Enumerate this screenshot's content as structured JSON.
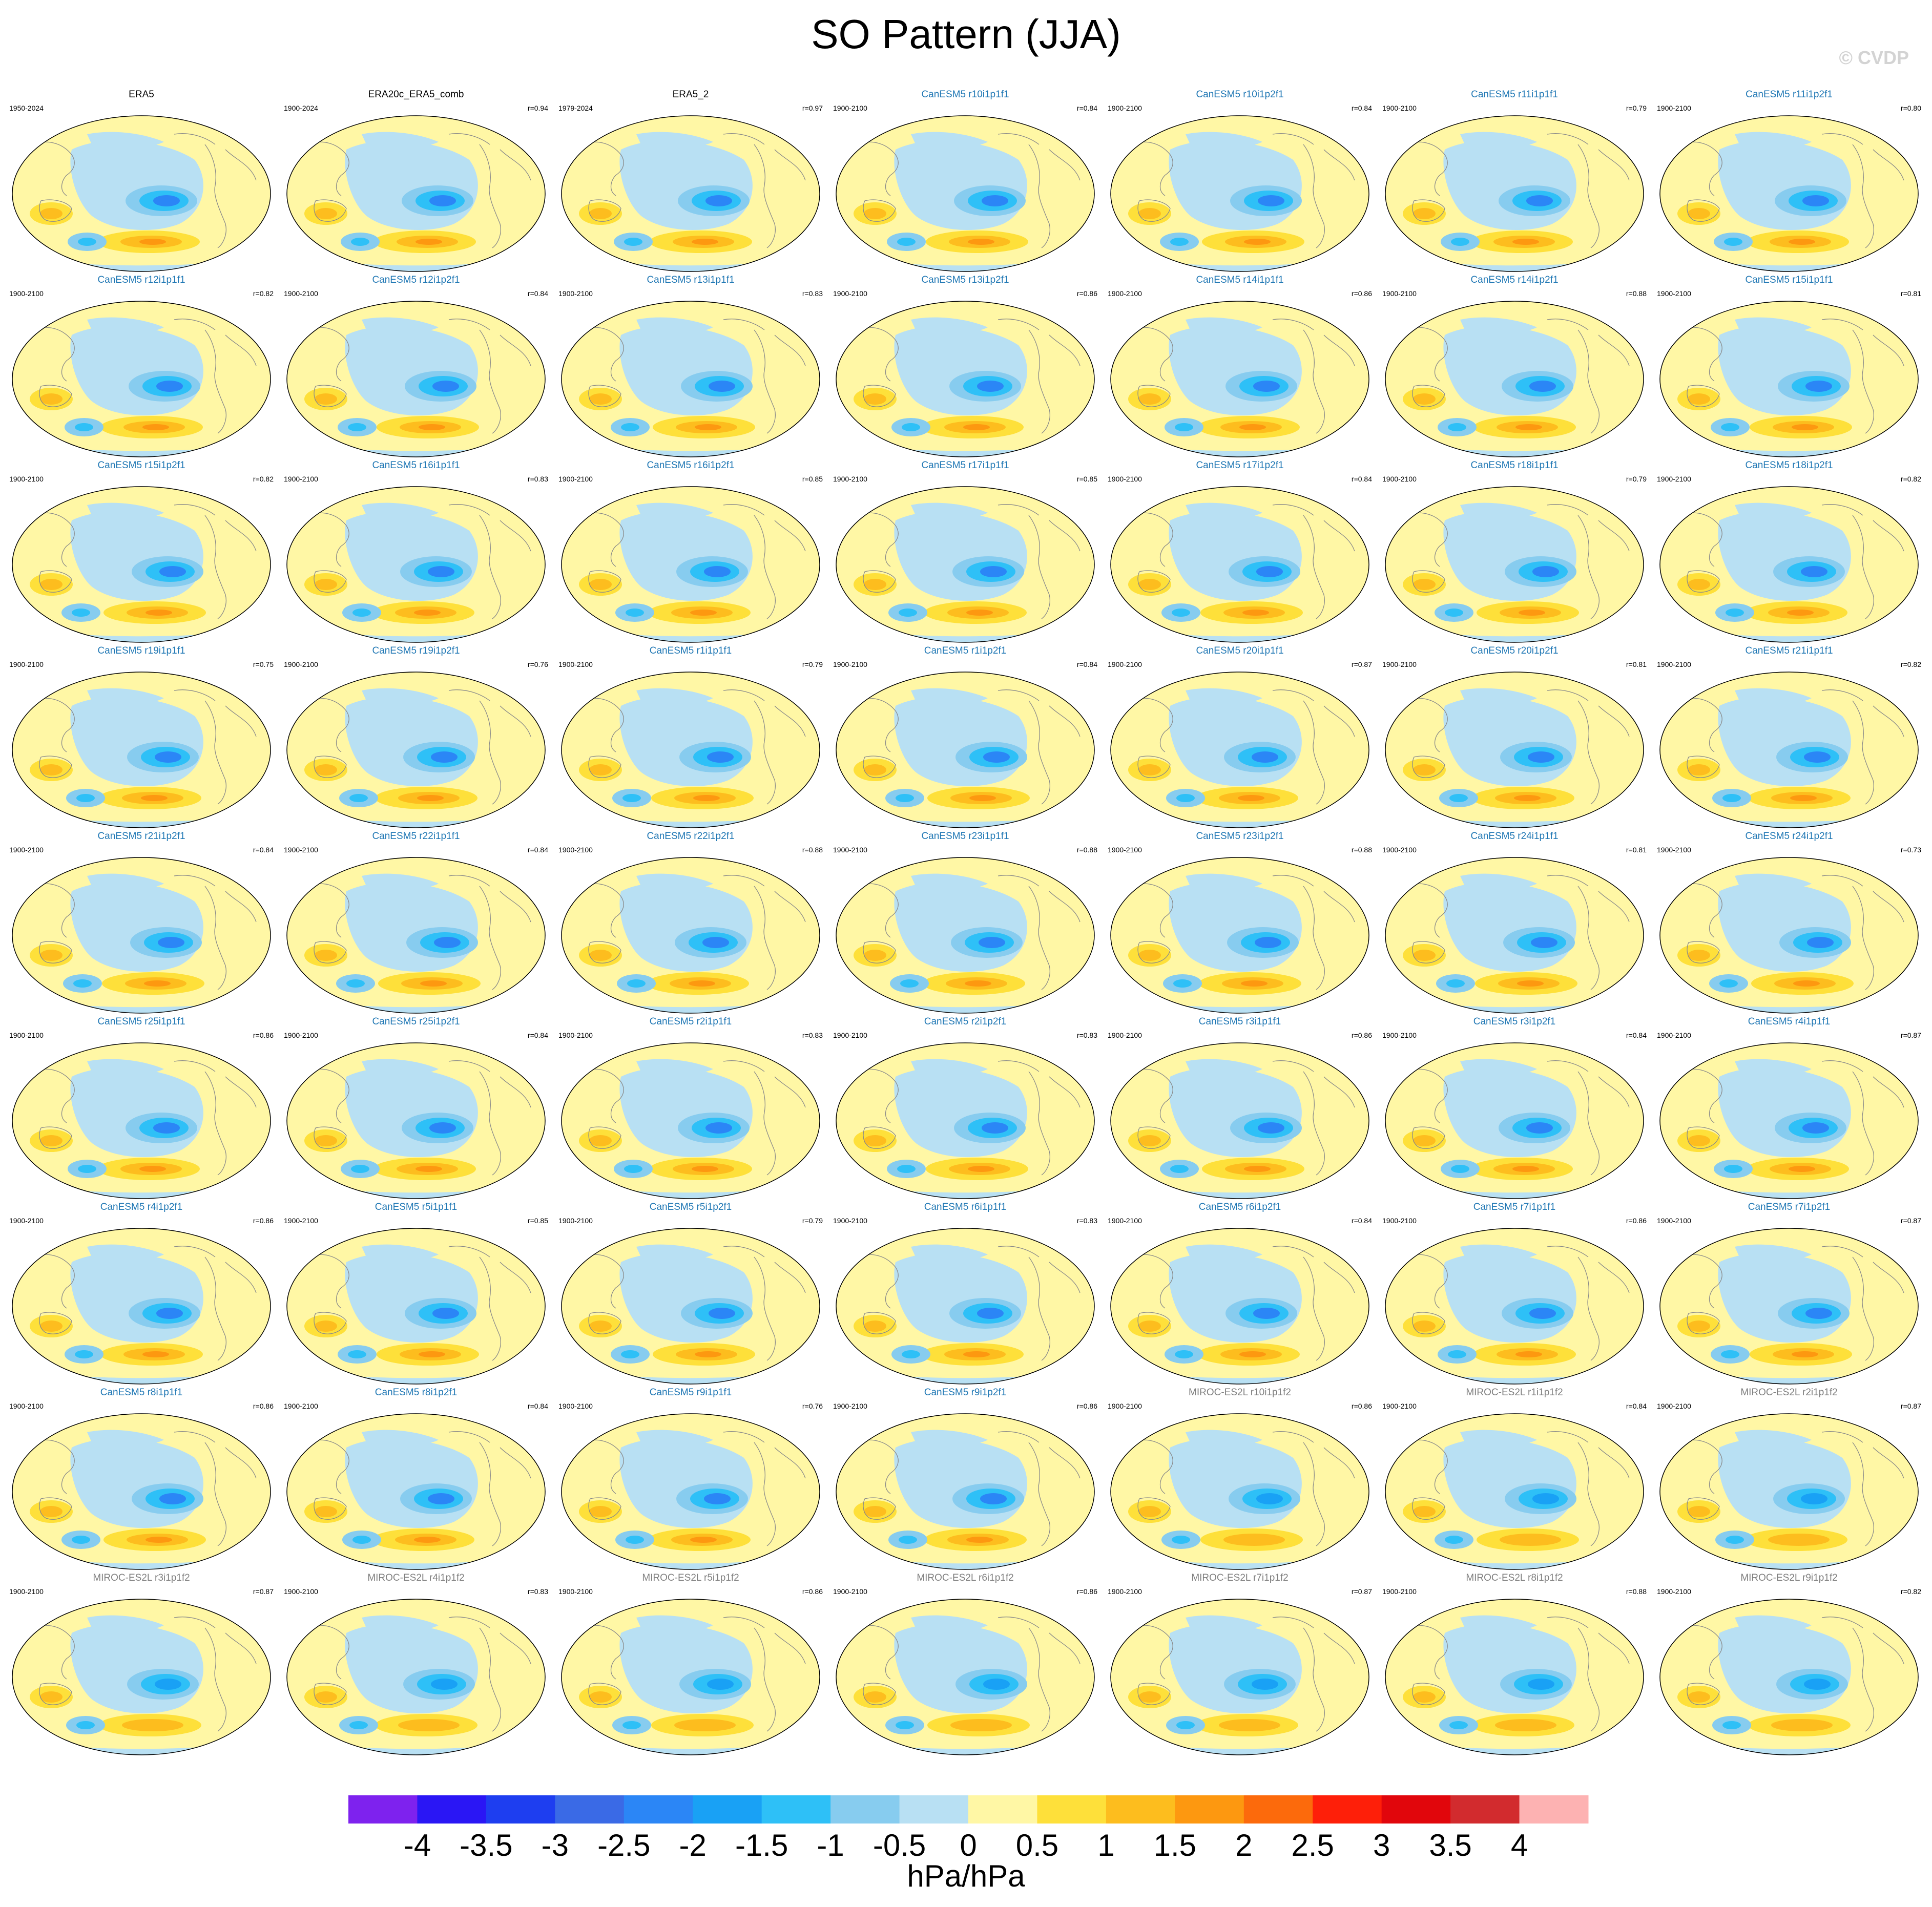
{
  "header": {
    "title": "SO Pattern (JJA)",
    "copyright": "© CVDP"
  },
  "colors": {
    "obs_name": "#000000",
    "canesm_name": "#1f77b4",
    "miroc_name": "#7f7f7f",
    "coast": "#8a8a8a"
  },
  "chart_data": {
    "type": "contour-map-grid",
    "title": "SO Pattern (JJA)",
    "projection": "Robinson (Pacific-centered)",
    "panels": [
      {
        "name": "ERA5",
        "period": "1950-2024",
        "r": "",
        "group": "obs"
      },
      {
        "name": "ERA20c_ERA5_comb",
        "period": "1900-2024",
        "r": "r=0.94",
        "group": "obs"
      },
      {
        "name": "ERA5_2",
        "period": "1979-2024",
        "r": "r=0.97",
        "group": "obs"
      },
      {
        "name": "CanESM5 r10i1p1f1",
        "period": "1900-2100",
        "r": "r=0.84",
        "group": "canesm"
      },
      {
        "name": "CanESM5 r10i1p2f1",
        "period": "1900-2100",
        "r": "r=0.84",
        "group": "canesm"
      },
      {
        "name": "CanESM5 r11i1p1f1",
        "period": "1900-2100",
        "r": "r=0.79",
        "group": "canesm"
      },
      {
        "name": "CanESM5 r11i1p2f1",
        "period": "1900-2100",
        "r": "r=0.80",
        "group": "canesm"
      },
      {
        "name": "CanESM5 r12i1p1f1",
        "period": "1900-2100",
        "r": "r=0.82",
        "group": "canesm"
      },
      {
        "name": "CanESM5 r12i1p2f1",
        "period": "1900-2100",
        "r": "r=0.84",
        "group": "canesm"
      },
      {
        "name": "CanESM5 r13i1p1f1",
        "period": "1900-2100",
        "r": "r=0.83",
        "group": "canesm"
      },
      {
        "name": "CanESM5 r13i1p2f1",
        "period": "1900-2100",
        "r": "r=0.86",
        "group": "canesm"
      },
      {
        "name": "CanESM5 r14i1p1f1",
        "period": "1900-2100",
        "r": "r=0.86",
        "group": "canesm"
      },
      {
        "name": "CanESM5 r14i1p2f1",
        "period": "1900-2100",
        "r": "r=0.88",
        "group": "canesm"
      },
      {
        "name": "CanESM5 r15i1p1f1",
        "period": "1900-2100",
        "r": "r=0.81",
        "group": "canesm"
      },
      {
        "name": "CanESM5 r15i1p2f1",
        "period": "1900-2100",
        "r": "r=0.82",
        "group": "canesm"
      },
      {
        "name": "CanESM5 r16i1p1f1",
        "period": "1900-2100",
        "r": "r=0.83",
        "group": "canesm"
      },
      {
        "name": "CanESM5 r16i1p2f1",
        "period": "1900-2100",
        "r": "r=0.85",
        "group": "canesm"
      },
      {
        "name": "CanESM5 r17i1p1f1",
        "period": "1900-2100",
        "r": "r=0.85",
        "group": "canesm"
      },
      {
        "name": "CanESM5 r17i1p2f1",
        "period": "1900-2100",
        "r": "r=0.84",
        "group": "canesm"
      },
      {
        "name": "CanESM5 r18i1p1f1",
        "period": "1900-2100",
        "r": "r=0.79",
        "group": "canesm"
      },
      {
        "name": "CanESM5 r18i1p2f1",
        "period": "1900-2100",
        "r": "r=0.82",
        "group": "canesm"
      },
      {
        "name": "CanESM5 r19i1p1f1",
        "period": "1900-2100",
        "r": "r=0.75",
        "group": "canesm"
      },
      {
        "name": "CanESM5 r19i1p2f1",
        "period": "1900-2100",
        "r": "r=0.76",
        "group": "canesm"
      },
      {
        "name": "CanESM5 r1i1p1f1",
        "period": "1900-2100",
        "r": "r=0.79",
        "group": "canesm"
      },
      {
        "name": "CanESM5 r1i1p2f1",
        "period": "1900-2100",
        "r": "r=0.84",
        "group": "canesm"
      },
      {
        "name": "CanESM5 r20i1p1f1",
        "period": "1900-2100",
        "r": "r=0.87",
        "group": "canesm"
      },
      {
        "name": "CanESM5 r20i1p2f1",
        "period": "1900-2100",
        "r": "r=0.81",
        "group": "canesm"
      },
      {
        "name": "CanESM5 r21i1p1f1",
        "period": "1900-2100",
        "r": "r=0.82",
        "group": "canesm"
      },
      {
        "name": "CanESM5 r21i1p2f1",
        "period": "1900-2100",
        "r": "r=0.84",
        "group": "canesm"
      },
      {
        "name": "CanESM5 r22i1p1f1",
        "period": "1900-2100",
        "r": "r=0.84",
        "group": "canesm"
      },
      {
        "name": "CanESM5 r22i1p2f1",
        "period": "1900-2100",
        "r": "r=0.88",
        "group": "canesm"
      },
      {
        "name": "CanESM5 r23i1p1f1",
        "period": "1900-2100",
        "r": "r=0.88",
        "group": "canesm"
      },
      {
        "name": "CanESM5 r23i1p2f1",
        "period": "1900-2100",
        "r": "r=0.88",
        "group": "canesm"
      },
      {
        "name": "CanESM5 r24i1p1f1",
        "period": "1900-2100",
        "r": "r=0.81",
        "group": "canesm"
      },
      {
        "name": "CanESM5 r24i1p2f1",
        "period": "1900-2100",
        "r": "r=0.73",
        "group": "canesm"
      },
      {
        "name": "CanESM5 r25i1p1f1",
        "period": "1900-2100",
        "r": "r=0.86",
        "group": "canesm"
      },
      {
        "name": "CanESM5 r25i1p2f1",
        "period": "1900-2100",
        "r": "r=0.84",
        "group": "canesm"
      },
      {
        "name": "CanESM5 r2i1p1f1",
        "period": "1900-2100",
        "r": "r=0.83",
        "group": "canesm"
      },
      {
        "name": "CanESM5 r2i1p2f1",
        "period": "1900-2100",
        "r": "r=0.83",
        "group": "canesm"
      },
      {
        "name": "CanESM5 r3i1p1f1",
        "period": "1900-2100",
        "r": "r=0.86",
        "group": "canesm"
      },
      {
        "name": "CanESM5 r3i1p2f1",
        "period": "1900-2100",
        "r": "r=0.84",
        "group": "canesm"
      },
      {
        "name": "CanESM5 r4i1p1f1",
        "period": "1900-2100",
        "r": "r=0.87",
        "group": "canesm"
      },
      {
        "name": "CanESM5 r4i1p2f1",
        "period": "1900-2100",
        "r": "r=0.86",
        "group": "canesm"
      },
      {
        "name": "CanESM5 r5i1p1f1",
        "period": "1900-2100",
        "r": "r=0.85",
        "group": "canesm"
      },
      {
        "name": "CanESM5 r5i1p2f1",
        "period": "1900-2100",
        "r": "r=0.79",
        "group": "canesm"
      },
      {
        "name": "CanESM5 r6i1p1f1",
        "period": "1900-2100",
        "r": "r=0.83",
        "group": "canesm"
      },
      {
        "name": "CanESM5 r6i1p2f1",
        "period": "1900-2100",
        "r": "r=0.84",
        "group": "canesm"
      },
      {
        "name": "CanESM5 r7i1p1f1",
        "period": "1900-2100",
        "r": "r=0.86",
        "group": "canesm"
      },
      {
        "name": "CanESM5 r7i1p2f1",
        "period": "1900-2100",
        "r": "r=0.87",
        "group": "canesm"
      },
      {
        "name": "CanESM5 r8i1p1f1",
        "period": "1900-2100",
        "r": "r=0.86",
        "group": "canesm"
      },
      {
        "name": "CanESM5 r8i1p2f1",
        "period": "1900-2100",
        "r": "r=0.84",
        "group": "canesm"
      },
      {
        "name": "CanESM5 r9i1p1f1",
        "period": "1900-2100",
        "r": "r=0.76",
        "group": "canesm"
      },
      {
        "name": "CanESM5 r9i1p2f1",
        "period": "1900-2100",
        "r": "r=0.86",
        "group": "canesm"
      },
      {
        "name": "MIROC-ES2L r10i1p1f2",
        "period": "1900-2100",
        "r": "r=0.86",
        "group": "miroc"
      },
      {
        "name": "MIROC-ES2L r1i1p1f2",
        "period": "1900-2100",
        "r": "r=0.84",
        "group": "miroc"
      },
      {
        "name": "MIROC-ES2L r2i1p1f2",
        "period": "1900-2100",
        "r": "r=0.87",
        "group": "miroc"
      },
      {
        "name": "MIROC-ES2L r3i1p1f2",
        "period": "1900-2100",
        "r": "r=0.87",
        "group": "miroc"
      },
      {
        "name": "MIROC-ES2L r4i1p1f2",
        "period": "1900-2100",
        "r": "r=0.83",
        "group": "miroc"
      },
      {
        "name": "MIROC-ES2L r5i1p1f2",
        "period": "1900-2100",
        "r": "r=0.86",
        "group": "miroc"
      },
      {
        "name": "MIROC-ES2L r6i1p1f2",
        "period": "1900-2100",
        "r": "r=0.86",
        "group": "miroc"
      },
      {
        "name": "MIROC-ES2L r7i1p1f2",
        "period": "1900-2100",
        "r": "r=0.87",
        "group": "miroc"
      },
      {
        "name": "MIROC-ES2L r8i1p1f2",
        "period": "1900-2100",
        "r": "r=0.88",
        "group": "miroc"
      },
      {
        "name": "MIROC-ES2L r9i1p1f2",
        "period": "1900-2100",
        "r": "r=0.82",
        "group": "miroc"
      }
    ],
    "colorbar": {
      "units": "hPa/hPa",
      "tick_labels": [
        "-4",
        "-3.5",
        "-3",
        "-2.5",
        "-2",
        "-1.5",
        "-1",
        "-0.5",
        "0",
        "0.5",
        "1",
        "1.5",
        "2",
        "2.5",
        "3",
        "3.5",
        "4"
      ],
      "colors": [
        "#7e22ee",
        "#2a16f5",
        "#1e3ef0",
        "#3a6ae6",
        "#2b86f6",
        "#19a1f5",
        "#2ec0f7",
        "#87ccef",
        "#b8e0f3",
        "#fff7a5",
        "#fee03a",
        "#fdbd1e",
        "#fd9810",
        "#fc6a0c",
        "#fe1f09",
        "#e1060c",
        "#d22b2e",
        "#fdb2b2"
      ]
    }
  }
}
